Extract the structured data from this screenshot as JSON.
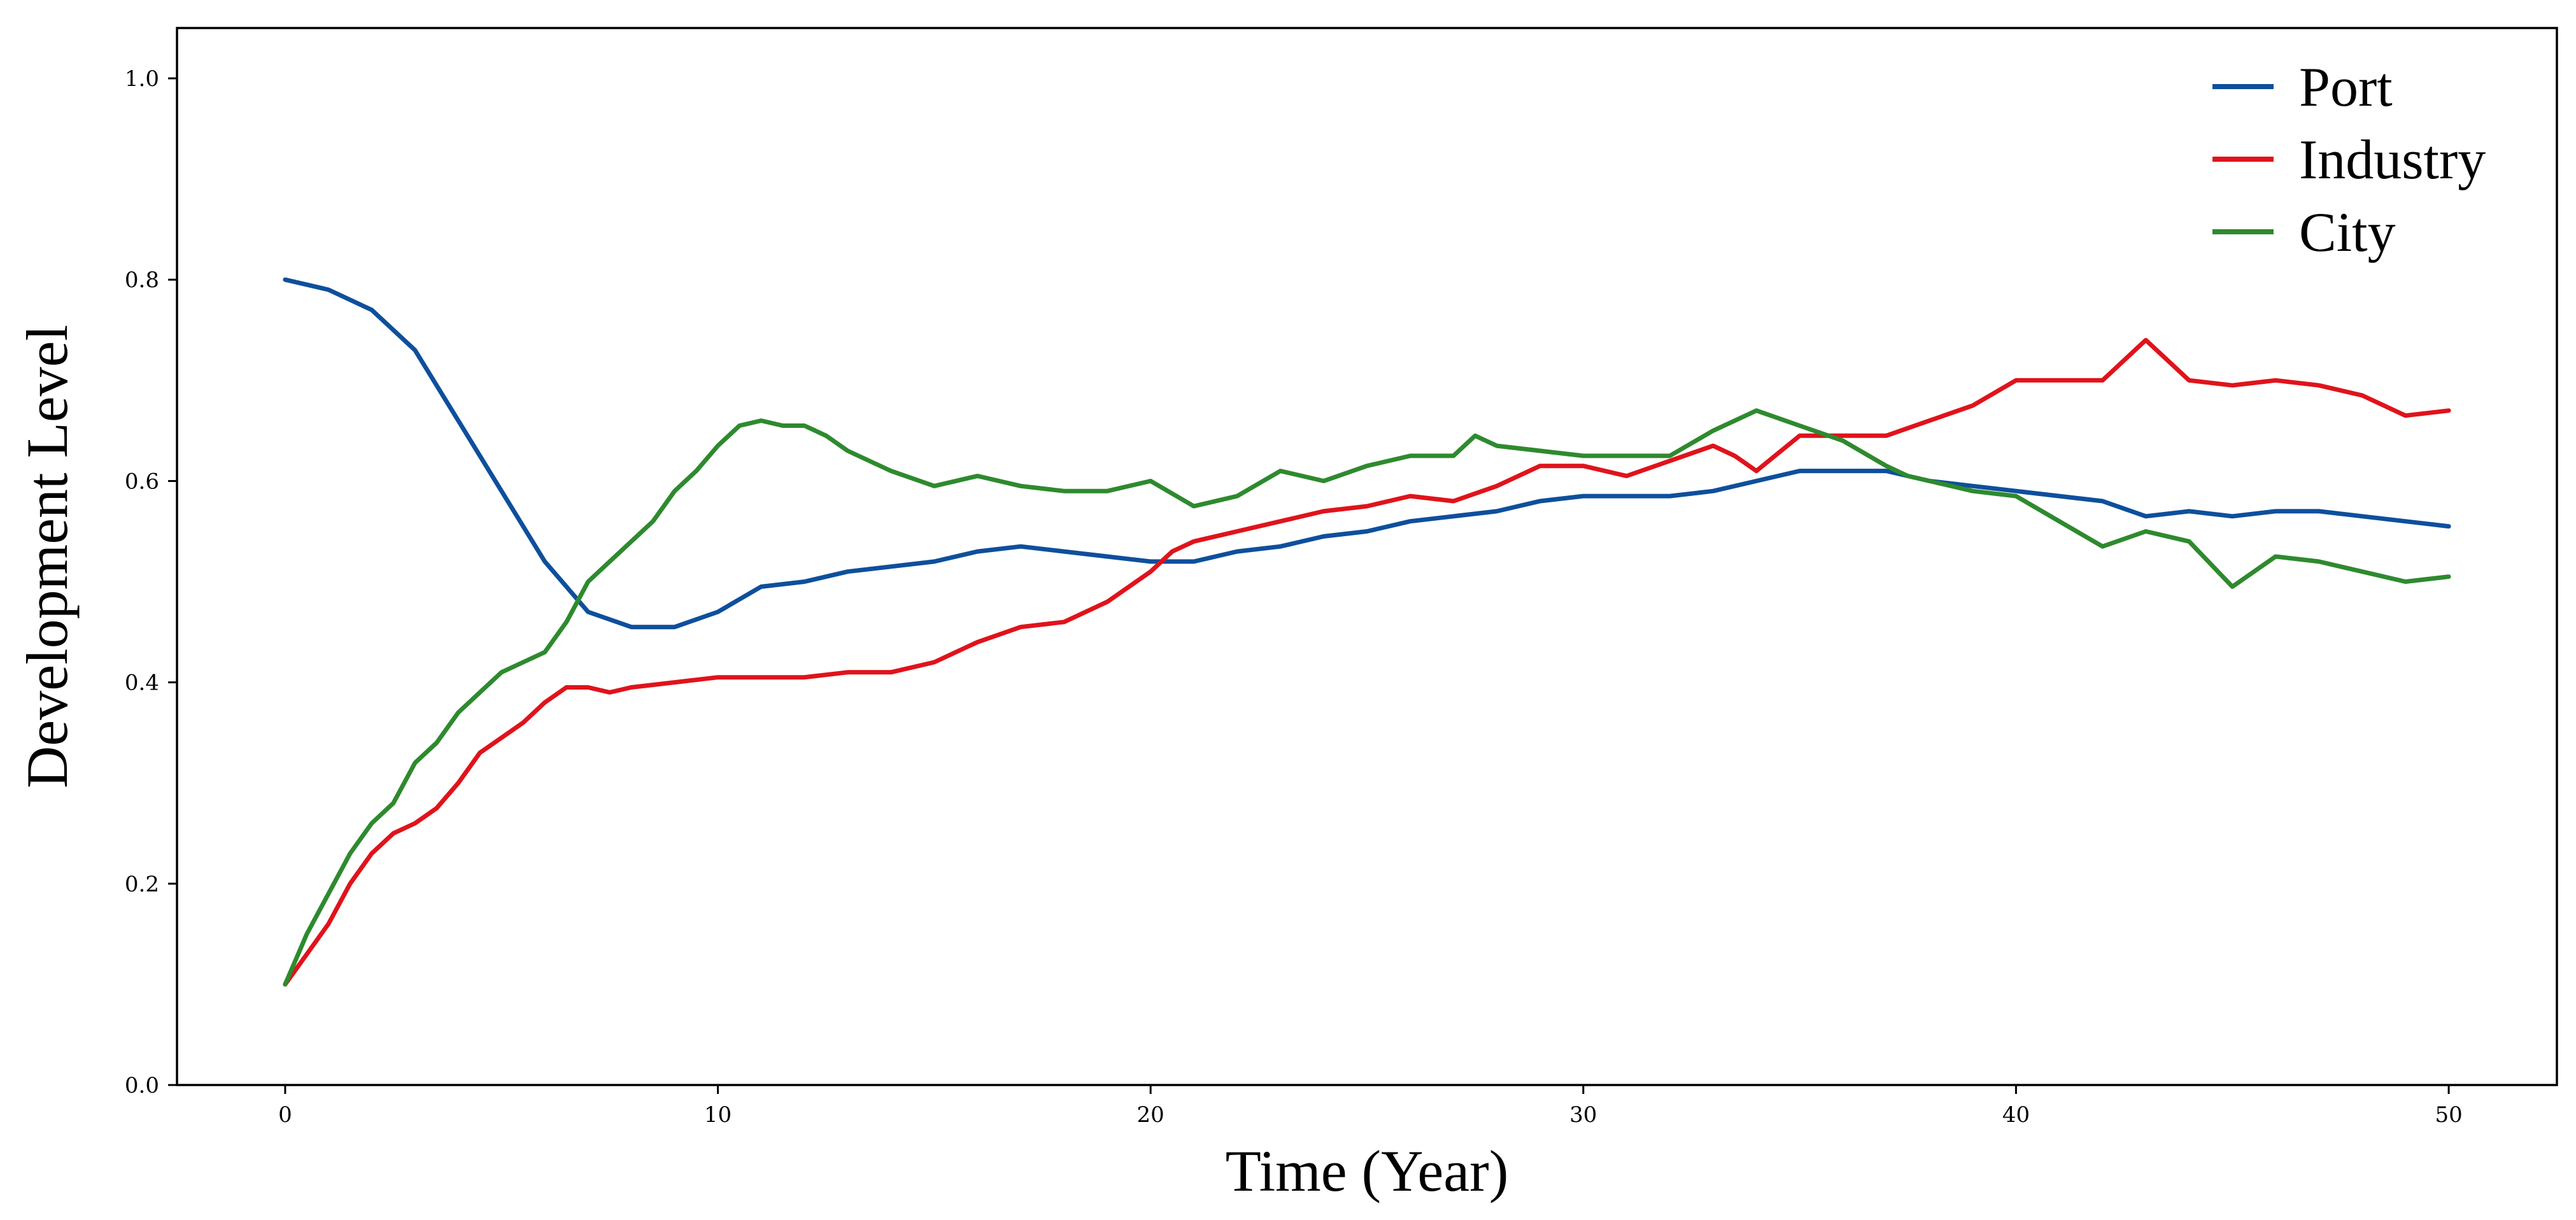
{
  "chart_data": {
    "type": "line",
    "title": "",
    "xlabel": "Time (Year)",
    "ylabel": "Development Level",
    "xlim": [
      -2.5,
      52.5
    ],
    "ylim": [
      0.0,
      1.05
    ],
    "xticks": [
      0,
      10,
      20,
      30,
      40,
      50
    ],
    "xtick_labels": [
      "0",
      "10",
      "20",
      "30",
      "40",
      "50"
    ],
    "yticks": [
      0.0,
      0.2,
      0.4,
      0.6,
      0.8,
      1.0
    ],
    "ytick_labels": [
      "0.0",
      "0.2",
      "0.4",
      "0.6",
      "0.8",
      "1.0"
    ],
    "grid": false,
    "legend_position": "top-right",
    "series": [
      {
        "name": "Port",
        "color": "#0e4f9c",
        "x": [
          0,
          1,
          2,
          3,
          4,
          5,
          6,
          7,
          8,
          9,
          10,
          11,
          12,
          13,
          14,
          15,
          16,
          17,
          18,
          19,
          20,
          21,
          22,
          23,
          24,
          25,
          26,
          27,
          28,
          29,
          30,
          31,
          32,
          33,
          34,
          35,
          36,
          37,
          38,
          39,
          40,
          41,
          42,
          43,
          44,
          45,
          46,
          47,
          48,
          49,
          50
        ],
        "y": [
          0.8,
          0.79,
          0.77,
          0.73,
          0.66,
          0.59,
          0.52,
          0.47,
          0.455,
          0.455,
          0.47,
          0.495,
          0.5,
          0.51,
          0.515,
          0.52,
          0.53,
          0.535,
          0.53,
          0.525,
          0.52,
          0.52,
          0.53,
          0.535,
          0.545,
          0.55,
          0.56,
          0.565,
          0.57,
          0.58,
          0.585,
          0.585,
          0.585,
          0.59,
          0.6,
          0.61,
          0.61,
          0.61,
          0.6,
          0.595,
          0.59,
          0.585,
          0.58,
          0.565,
          0.57,
          0.565,
          0.57,
          0.57,
          0.565,
          0.56,
          0.555
        ]
      },
      {
        "name": "Industry",
        "color": "#e0131b",
        "x": [
          0,
          0.5,
          1,
          1.5,
          2,
          2.5,
          3,
          3.5,
          4,
          4.5,
          5,
          5.5,
          6,
          6.5,
          7,
          7.5,
          8,
          9,
          10,
          11,
          12,
          13,
          14,
          15,
          16,
          17,
          18,
          19,
          20,
          20.5,
          21,
          22,
          23,
          24,
          25,
          26,
          27,
          28,
          29,
          30,
          31,
          32,
          33,
          33.5,
          34,
          35,
          36,
          37,
          38,
          39,
          40,
          41,
          42,
          43,
          44,
          45,
          46,
          47,
          48,
          49,
          50
        ],
        "y": [
          0.1,
          0.13,
          0.16,
          0.2,
          0.23,
          0.25,
          0.26,
          0.275,
          0.3,
          0.33,
          0.345,
          0.36,
          0.38,
          0.395,
          0.395,
          0.39,
          0.395,
          0.4,
          0.405,
          0.405,
          0.405,
          0.41,
          0.41,
          0.42,
          0.44,
          0.455,
          0.46,
          0.48,
          0.51,
          0.53,
          0.54,
          0.55,
          0.56,
          0.57,
          0.575,
          0.585,
          0.58,
          0.595,
          0.615,
          0.615,
          0.605,
          0.62,
          0.635,
          0.625,
          0.61,
          0.645,
          0.645,
          0.645,
          0.66,
          0.675,
          0.7,
          0.7,
          0.7,
          0.74,
          0.7,
          0.695,
          0.7,
          0.695,
          0.685,
          0.665,
          0.67
        ]
      },
      {
        "name": "City",
        "color": "#2e8a2e",
        "x": [
          0,
          0.5,
          1,
          1.5,
          2,
          2.5,
          3,
          3.5,
          4,
          4.5,
          5,
          5.5,
          6,
          6.5,
          7,
          7.5,
          8,
          8.5,
          9,
          9.5,
          10,
          10.5,
          11,
          11.5,
          12,
          12.5,
          13,
          14,
          15,
          16,
          17,
          18,
          19,
          20,
          21,
          22,
          23,
          24,
          25,
          26,
          27,
          27.5,
          28,
          29,
          30,
          31,
          32,
          33,
          34,
          35,
          36,
          37,
          37.5,
          38,
          39,
          40,
          41,
          42,
          43,
          44,
          45,
          46,
          47,
          48,
          49,
          50
        ],
        "y": [
          0.1,
          0.15,
          0.19,
          0.23,
          0.26,
          0.28,
          0.32,
          0.34,
          0.37,
          0.39,
          0.41,
          0.42,
          0.43,
          0.46,
          0.5,
          0.52,
          0.54,
          0.56,
          0.59,
          0.61,
          0.635,
          0.655,
          0.66,
          0.655,
          0.655,
          0.645,
          0.63,
          0.61,
          0.595,
          0.605,
          0.595,
          0.59,
          0.59,
          0.6,
          0.575,
          0.585,
          0.61,
          0.6,
          0.615,
          0.625,
          0.625,
          0.645,
          0.635,
          0.63,
          0.625,
          0.625,
          0.625,
          0.65,
          0.67,
          0.655,
          0.64,
          0.615,
          0.605,
          0.6,
          0.59,
          0.585,
          0.56,
          0.535,
          0.55,
          0.54,
          0.495,
          0.525,
          0.52,
          0.51,
          0.5,
          0.505
        ]
      }
    ]
  }
}
